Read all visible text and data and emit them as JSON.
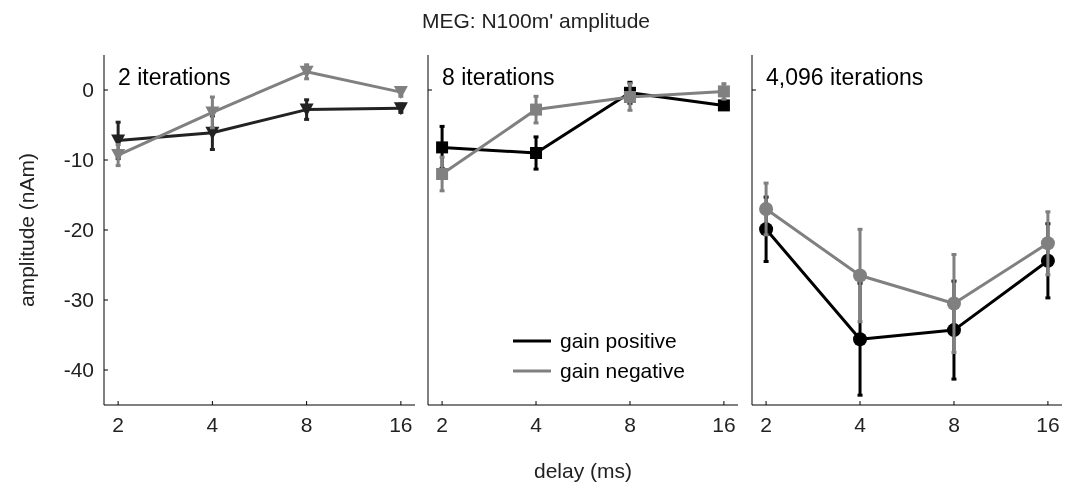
{
  "chart_data": [
    {
      "type": "line",
      "ylabel": "amplitude (nAm)",
      "annotations": [
        "2 iterations"
      ],
      "categories": [
        "2",
        "4",
        "8",
        "16"
      ],
      "ylim": [
        -45,
        5
      ],
      "yticks": [
        0,
        -10,
        -20,
        -30,
        -40
      ],
      "marker": "triangle",
      "grid": false,
      "legend": false,
      "series": [
        {
          "color": "#222222",
          "values": [
            -7.2,
            -6.1,
            -2.8,
            -2.6
          ],
          "errors": [
            2.6,
            2.4,
            1.4,
            0.6
          ]
        },
        {
          "color": "#808080",
          "values": [
            -9.3,
            -3.2,
            2.6,
            -0.3
          ],
          "errors": [
            1.5,
            2.2,
            1.0,
            0.6
          ]
        }
      ]
    },
    {
      "type": "line",
      "title": "MEG: N100m' amplitude",
      "xlabel": "delay (ms)",
      "annotations": [
        "8 iterations"
      ],
      "categories": [
        "2",
        "4",
        "8",
        "16"
      ],
      "ylim": [
        -45,
        5
      ],
      "yticks": [
        {
          "value": 0,
          "label": null
        }
      ],
      "tick_labels": "x",
      "marker": "square",
      "grid": false,
      "legend": "bottom right",
      "series": [
        {
          "name": "gain positive",
          "color": "#000000",
          "values": [
            -8.2,
            -9.0,
            -0.4,
            -2.2
          ],
          "errors": [
            3.0,
            2.3,
            1.5,
            0.5
          ]
        },
        {
          "name": "gain negative",
          "color": "#808080",
          "values": [
            -12.0,
            -2.8,
            -1.0,
            -0.2
          ],
          "errors": [
            2.4,
            1.9,
            1.9,
            1.1
          ]
        }
      ]
    },
    {
      "type": "line",
      "annotations": [
        "4,096 iterations"
      ],
      "categories": [
        "2",
        "4",
        "8",
        "16"
      ],
      "ylim": [
        -45,
        5
      ],
      "yticks": [
        {
          "value": 0,
          "label": null
        }
      ],
      "tick_labels": "x",
      "marker": "circle",
      "grid": false,
      "legend": false,
      "series": [
        {
          "color": "#000000",
          "values": [
            -19.9,
            -35.6,
            -34.3,
            -24.4
          ],
          "errors": [
            4.6,
            8.0,
            7.0,
            5.3
          ]
        },
        {
          "color": "#808080",
          "values": [
            -17.0,
            -26.5,
            -30.5,
            -21.9
          ],
          "errors": [
            3.7,
            6.6,
            7.0,
            4.5
          ]
        }
      ]
    }
  ]
}
